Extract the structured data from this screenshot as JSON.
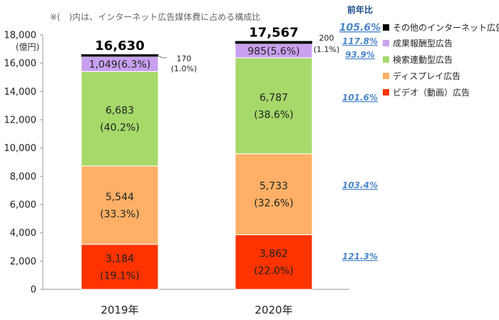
{
  "chart_data": {
    "type": "bar",
    "stacked": true,
    "note": "※(　)内は、インターネット広告媒体費に占める構成比",
    "y_unit": "(億円)",
    "ylim": [
      0,
      18000
    ],
    "yticks": [
      0,
      2000,
      4000,
      6000,
      8000,
      10000,
      12000,
      14000,
      16000,
      18000
    ],
    "ytick_labels": [
      "0",
      "2,000",
      "4,000",
      "6,000",
      "8,000",
      "10,000",
      "12,000",
      "14,000",
      "16,000",
      "18,000"
    ],
    "categories": [
      "2019年",
      "2020年"
    ],
    "totals": [
      16630,
      17567
    ],
    "total_labels": [
      "16,630",
      "17,567"
    ],
    "series": [
      {
        "name": "ビデオ（動画）広告",
        "color": "#ff3300",
        "values": [
          3184,
          3862
        ],
        "labels": [
          "3,184\n(19.1%)",
          "3,862\n(22.0%)"
        ],
        "yoy": "121.3%"
      },
      {
        "name": "ディスプレイ広告",
        "color": "#ffb066",
        "values": [
          5544,
          5733
        ],
        "labels": [
          "5,544\n(33.3%)",
          "5,733\n(32.6%)"
        ],
        "yoy": "103.4%"
      },
      {
        "name": "検索連動型広告",
        "color": "#a6d96a",
        "values": [
          6683,
          6787
        ],
        "labels": [
          "6,683\n(40.2%)",
          "6,787\n(38.6%)"
        ],
        "yoy": "101.6%"
      },
      {
        "name": "成果報酬型広告",
        "color": "#c9a0f0",
        "values": [
          1049,
          985
        ],
        "labels": [
          "1,049(6.3%)",
          "985(5.6%)"
        ],
        "yoy": "93.9%"
      },
      {
        "name": "その他のインターネット広告",
        "color": "#000000",
        "values": [
          170,
          200
        ],
        "labels": [
          "170\n(1.0%)",
          "200\n(1.1%)"
        ],
        "yoy": "117.8%"
      }
    ],
    "yoy_header": "前年比",
    "yoy_total": "105.6%",
    "legend": [
      "その他のインターネット広告",
      "成果報酬型広告",
      "検索連動型広告",
      "ディスプレイ広告",
      "ビデオ（動画）広告"
    ]
  }
}
